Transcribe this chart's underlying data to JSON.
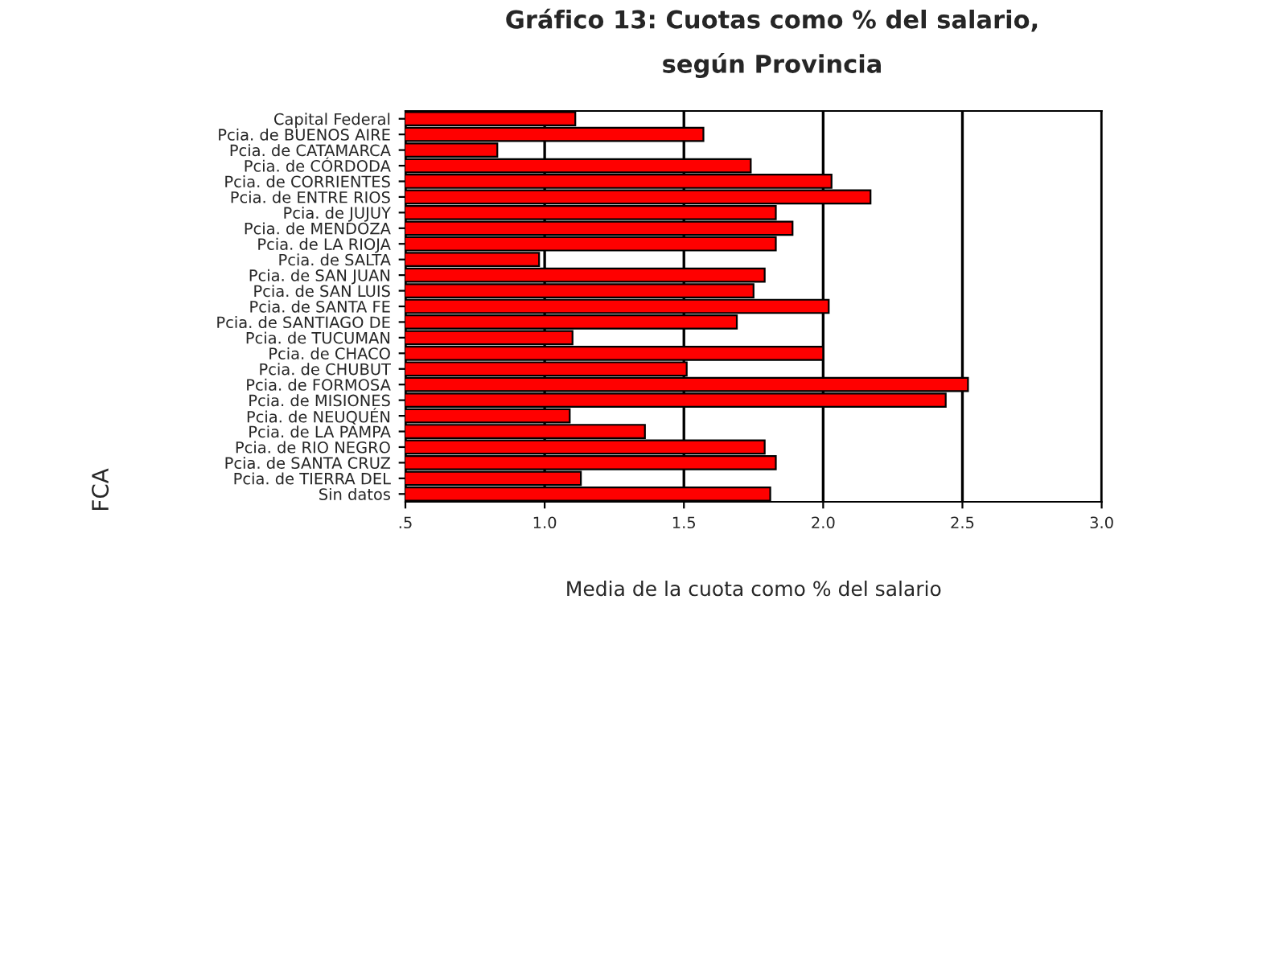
{
  "chart_data": {
    "type": "bar",
    "orientation": "horizontal",
    "title": "Gráfico 13: Cuotas como % del salario,\nsegún Provincia",
    "xlabel": "Media de la cuota como % del salario",
    "ylabel": "FCA",
    "categories": [
      "Capital Federal",
      "Pcia. de BUENOS AIRE",
      "Pcia. de CATAMARCA",
      "Pcia. de CÓRDODA",
      "Pcia. de CORRIENTES",
      "Pcia. de ENTRE RIOS",
      "Pcia. de JUJUY",
      "Pcia. de MENDOZA",
      "Pcia. de LA RIOJA",
      "Pcia. de SALTA",
      "Pcia. de SAN JUAN",
      "Pcia. de SAN LUIS",
      "Pcia. de SANTA FE",
      "Pcia. de SANTIAGO DE",
      "Pcia. de TUCUMAN",
      "Pcia. de CHACO",
      "Pcia. de CHUBUT",
      "Pcia. de FORMOSA",
      "Pcia. de MISIONES",
      "Pcia. de NEUQUÉN",
      "Pcia. de LA PAMPA",
      "Pcia. de RIO NEGRO",
      "Pcia. de SANTA CRUZ",
      "Pcia. de TIERRA DEL",
      "Sin datos"
    ],
    "values": [
      1.11,
      1.57,
      0.83,
      1.74,
      2.03,
      2.17,
      1.83,
      1.89,
      1.83,
      0.98,
      1.79,
      1.75,
      2.02,
      1.69,
      1.1,
      2.0,
      1.51,
      2.52,
      2.44,
      1.09,
      1.36,
      1.79,
      1.83,
      1.13,
      1.81
    ],
    "color": "#ff0000",
    "xlim": [
      0.5,
      3.0
    ],
    "xticks": [
      {
        "value": 0.5,
        "label": ".5"
      },
      {
        "value": 1.0,
        "label": "1.0"
      },
      {
        "value": 1.5,
        "label": "1.5"
      },
      {
        "value": 2.0,
        "label": "2.0"
      },
      {
        "value": 2.5,
        "label": "2.5"
      },
      {
        "value": 3.0,
        "label": "3.0"
      }
    ],
    "grid": "x"
  }
}
